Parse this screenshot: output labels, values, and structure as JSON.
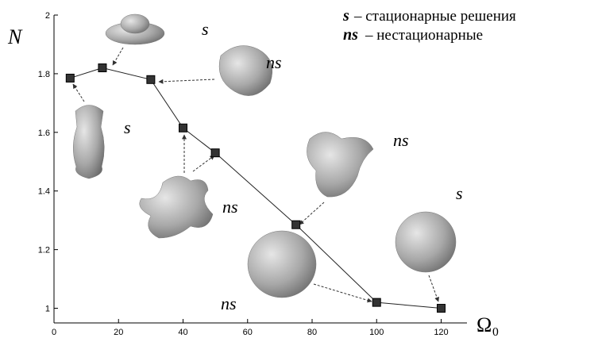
{
  "chart_data": {
    "type": "line",
    "x_label": "Ω₀",
    "y_label": "N",
    "x": [
      5,
      15,
      30,
      40,
      50,
      75,
      100,
      120
    ],
    "series": [
      {
        "name": "N",
        "color": "#222222",
        "values": [
          1.785,
          1.82,
          1.78,
          1.615,
          1.53,
          1.285,
          1.02,
          1.0
        ]
      }
    ],
    "xlim": [
      0,
      128
    ],
    "xticks": [
      0,
      20,
      40,
      60,
      80,
      100,
      120
    ],
    "ylim": [
      0.95,
      2
    ],
    "yticks": [
      1,
      1.2,
      1.4,
      1.6,
      1.8,
      2
    ],
    "annotations": [
      "s",
      "ns",
      "s",
      "ns",
      "ns",
      "s",
      "ns"
    ],
    "legend": [
      {
        "symbol": "s",
        "text": "– стационарные решения"
      },
      {
        "symbol": "ns",
        "text": "– нестационарные"
      }
    ]
  }
}
